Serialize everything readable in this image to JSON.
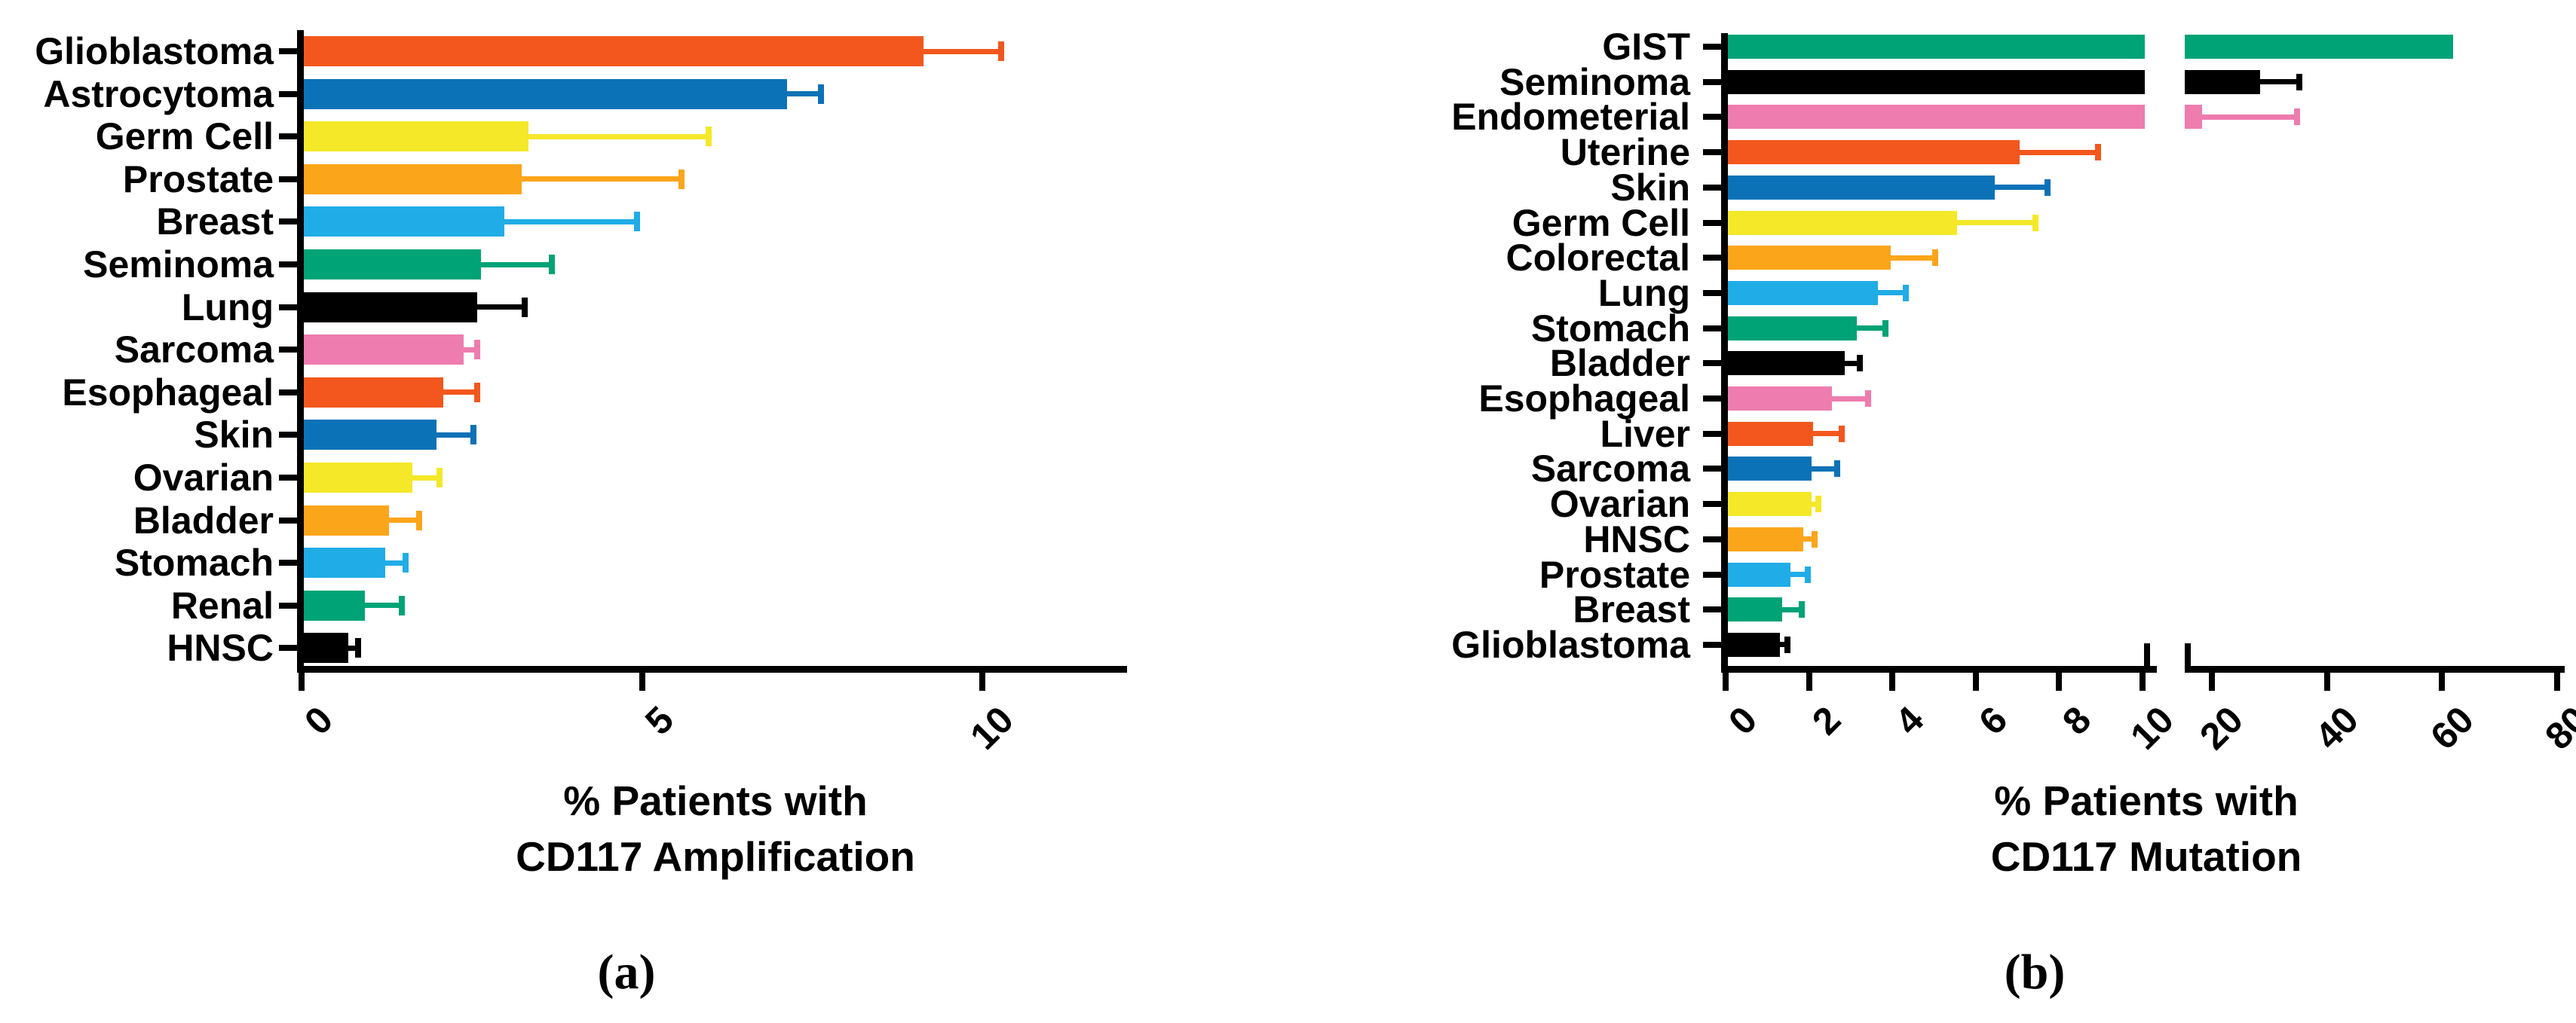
{
  "figure": {
    "background": "#ffffff",
    "palette": {
      "orangered": "#F3571D",
      "blue": "#0C72B7",
      "yellow": "#F5E829",
      "orange": "#FBA51B",
      "cyan": "#20ACE6",
      "green": "#00A376",
      "black": "#000000",
      "pink": "#EE7CAE"
    }
  },
  "chart_data": [
    {
      "type": "bar",
      "orientation": "horizontal",
      "panel_letter": "(a)",
      "xlabel": "% Patients with CD117 Amplification",
      "xlabel_lines": [
        "% Patients with",
        "CD117  Amplification"
      ],
      "ylabel": "",
      "grid": false,
      "xticks": [
        0,
        5,
        10
      ],
      "xlim": [
        0,
        12.1
      ],
      "error_bars": "positive, matching bar color, T-cap",
      "categories": [
        "Glioblastoma",
        "Astrocytoma",
        "Germ Cell",
        "Prostate",
        "Breast",
        "Seminoma",
        "Lung",
        "Sarcoma",
        "Esophageal",
        "Skin",
        "Ovarian",
        "Bladder",
        "Stomach",
        "Renal",
        "HNSC"
      ],
      "values": [
        9.1,
        7.1,
        3.3,
        3.2,
        2.95,
        2.6,
        2.55,
        2.35,
        2.05,
        1.95,
        1.6,
        1.25,
        1.2,
        0.9,
        0.65
      ],
      "errors": [
        1.1,
        0.45,
        2.6,
        2.3,
        1.9,
        1.0,
        0.65,
        0.15,
        0.45,
        0.5,
        0.35,
        0.4,
        0.25,
        0.5,
        0.1
      ],
      "colors": [
        "#F3571D",
        "#0C72B7",
        "#F5E829",
        "#FBA51B",
        "#20ACE6",
        "#00A376",
        "#000000",
        "#EE7CAE",
        "#F3571D",
        "#0C72B7",
        "#F5E829",
        "#FBA51B",
        "#20ACE6",
        "#00A376",
        "#000000"
      ]
    },
    {
      "type": "bar",
      "orientation": "horizontal",
      "panel_letter": "(b)",
      "xlabel": "% Patients with CD117 Mutation",
      "xlabel_lines": [
        "% Patients with",
        "CD117  Mutation"
      ],
      "ylabel": "",
      "grid": false,
      "axis_break": {
        "segment1_lim": [
          0,
          10
        ],
        "segment1_ticks": [
          0,
          2,
          4,
          6,
          8,
          10
        ],
        "segment2_lim": [
          15,
          80
        ],
        "segment2_ticks": [
          20,
          40,
          60,
          80
        ]
      },
      "xticks": [
        0,
        2,
        4,
        6,
        8,
        10,
        20,
        40,
        60,
        80
      ],
      "error_bars": "positive, matching bar color, T-cap",
      "categories": [
        "GIST",
        "Seminoma",
        "Endometerial",
        "Uterine",
        "Skin",
        "Germ Cell",
        "Colorectal",
        "Lung",
        "Stomach",
        "Bladder",
        "Esophageal",
        "Liver",
        "Sarcoma",
        "Ovarian",
        "HNSC",
        "Prostate",
        "Breast",
        "Glioblastoma"
      ],
      "values": [
        61.5,
        28.0,
        17.9,
        7.0,
        6.4,
        5.5,
        3.9,
        3.6,
        3.1,
        2.8,
        2.5,
        2.05,
        2.0,
        2.0,
        1.8,
        1.5,
        1.3,
        1.25
      ],
      "errors": [
        0,
        6.3,
        16.0,
        1.8,
        1.2,
        1.8,
        1.0,
        0.6,
        0.6,
        0.3,
        0.8,
        0.6,
        0.55,
        0.1,
        0.2,
        0.35,
        0.4,
        0.1
      ],
      "colors": [
        "#00A376",
        "#000000",
        "#EE7CAE",
        "#F3571D",
        "#0C72B7",
        "#F5E829",
        "#FBA51B",
        "#20ACE6",
        "#00A376",
        "#000000",
        "#EE7CAE",
        "#F3571D",
        "#0C72B7",
        "#F5E829",
        "#FBA51B",
        "#20ACE6",
        "#00A376",
        "#000000"
      ]
    }
  ]
}
